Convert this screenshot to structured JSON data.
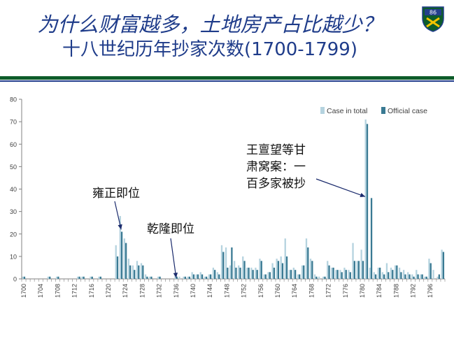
{
  "slide": {
    "title": "为什么财富越多，土地房产占比越少？",
    "subtitle": "十八世纪历年抄家次数(1700-1799)",
    "logo": {
      "icon": "shield-crest-icon",
      "text": "86",
      "colors": {
        "green": "#0d5c2a",
        "gold": "#f2c300",
        "navy": "#233e8c"
      }
    }
  },
  "chart_data": {
    "type": "bar",
    "title": "",
    "xlabel": "",
    "ylabel": "",
    "ylim": [
      0,
      80
    ],
    "yticks": [
      0,
      10,
      20,
      30,
      40,
      50,
      60,
      70,
      80
    ],
    "grid": false,
    "legend_position": "top-right",
    "colors": {
      "total": "#b5d3df",
      "official": "#3a7a93",
      "axis": "#808080"
    },
    "x_tick_labels": [
      "1700",
      "1704",
      "1708",
      "1712",
      "1716",
      "1720",
      "1724",
      "1728",
      "1732",
      "1736",
      "1740",
      "1744",
      "1748",
      "1752",
      "1756",
      "1760",
      "1764",
      "1768",
      "1772",
      "1776",
      "1780",
      "1784",
      "1788",
      "1792",
      "1796"
    ],
    "x": [
      1700,
      1701,
      1702,
      1703,
      1704,
      1705,
      1706,
      1707,
      1708,
      1709,
      1710,
      1711,
      1712,
      1713,
      1714,
      1715,
      1716,
      1717,
      1718,
      1719,
      1720,
      1721,
      1722,
      1723,
      1724,
      1725,
      1726,
      1727,
      1728,
      1729,
      1730,
      1731,
      1732,
      1733,
      1734,
      1735,
      1736,
      1737,
      1738,
      1739,
      1740,
      1741,
      1742,
      1743,
      1744,
      1745,
      1746,
      1747,
      1748,
      1749,
      1750,
      1751,
      1752,
      1753,
      1754,
      1755,
      1756,
      1757,
      1758,
      1759,
      1760,
      1761,
      1762,
      1763,
      1764,
      1765,
      1766,
      1767,
      1768,
      1769,
      1770,
      1771,
      1772,
      1773,
      1774,
      1775,
      1776,
      1777,
      1778,
      1779,
      1780,
      1781,
      1782,
      1783,
      1784,
      1785,
      1786,
      1787,
      1788,
      1789,
      1790,
      1791,
      1792,
      1793,
      1794,
      1795,
      1796,
      1797,
      1798,
      1799
    ],
    "series": [
      {
        "name": "Case in total",
        "values": [
          1,
          0,
          0,
          0,
          0,
          0,
          1,
          0,
          1,
          0,
          0,
          0,
          0,
          1,
          1,
          0,
          1,
          0,
          1,
          0,
          0,
          0,
          15,
          28,
          18,
          9,
          6,
          8,
          7,
          2,
          1,
          0,
          1,
          0,
          0,
          0,
          2,
          1,
          1,
          1,
          3,
          2,
          3,
          1,
          2,
          5,
          3,
          15,
          14,
          6,
          8,
          6,
          10,
          5,
          5,
          5,
          9,
          2,
          3,
          7,
          9,
          10,
          18,
          4,
          5,
          2,
          6,
          18,
          9,
          2,
          1,
          1,
          8,
          5,
          4,
          4,
          5,
          4,
          16,
          8,
          13,
          71,
          5,
          3,
          5,
          3,
          7,
          5,
          6,
          5,
          4,
          3,
          2,
          4,
          2,
          1,
          9,
          4,
          1,
          13
        ]
      },
      {
        "name": "Official case",
        "values": [
          1,
          0,
          0,
          0,
          0,
          0,
          1,
          0,
          1,
          0,
          0,
          0,
          0,
          1,
          1,
          0,
          1,
          0,
          1,
          0,
          0,
          0,
          10,
          21,
          16,
          6,
          4,
          6,
          6,
          1,
          1,
          0,
          1,
          0,
          0,
          0,
          1,
          0,
          1,
          1,
          2,
          2,
          2,
          1,
          2,
          4,
          2,
          12,
          5,
          14,
          5,
          5,
          8,
          5,
          4,
          4,
          8,
          2,
          3,
          5,
          8,
          7,
          10,
          4,
          4,
          2,
          6,
          14,
          8,
          1,
          0,
          1,
          6,
          5,
          4,
          3,
          4,
          3,
          8,
          8,
          8,
          69,
          36,
          2,
          5,
          2,
          3,
          4,
          6,
          3,
          2,
          2,
          1,
          2,
          2,
          1,
          7,
          0,
          2,
          12
        ]
      }
    ],
    "annotations": [
      {
        "label": "雍正即位",
        "x": 1723
      },
      {
        "label": "乾隆即位",
        "x": 1736
      },
      {
        "label": "王亶望等甘肃窝案：一百多家被抄",
        "x": 1781
      }
    ]
  }
}
